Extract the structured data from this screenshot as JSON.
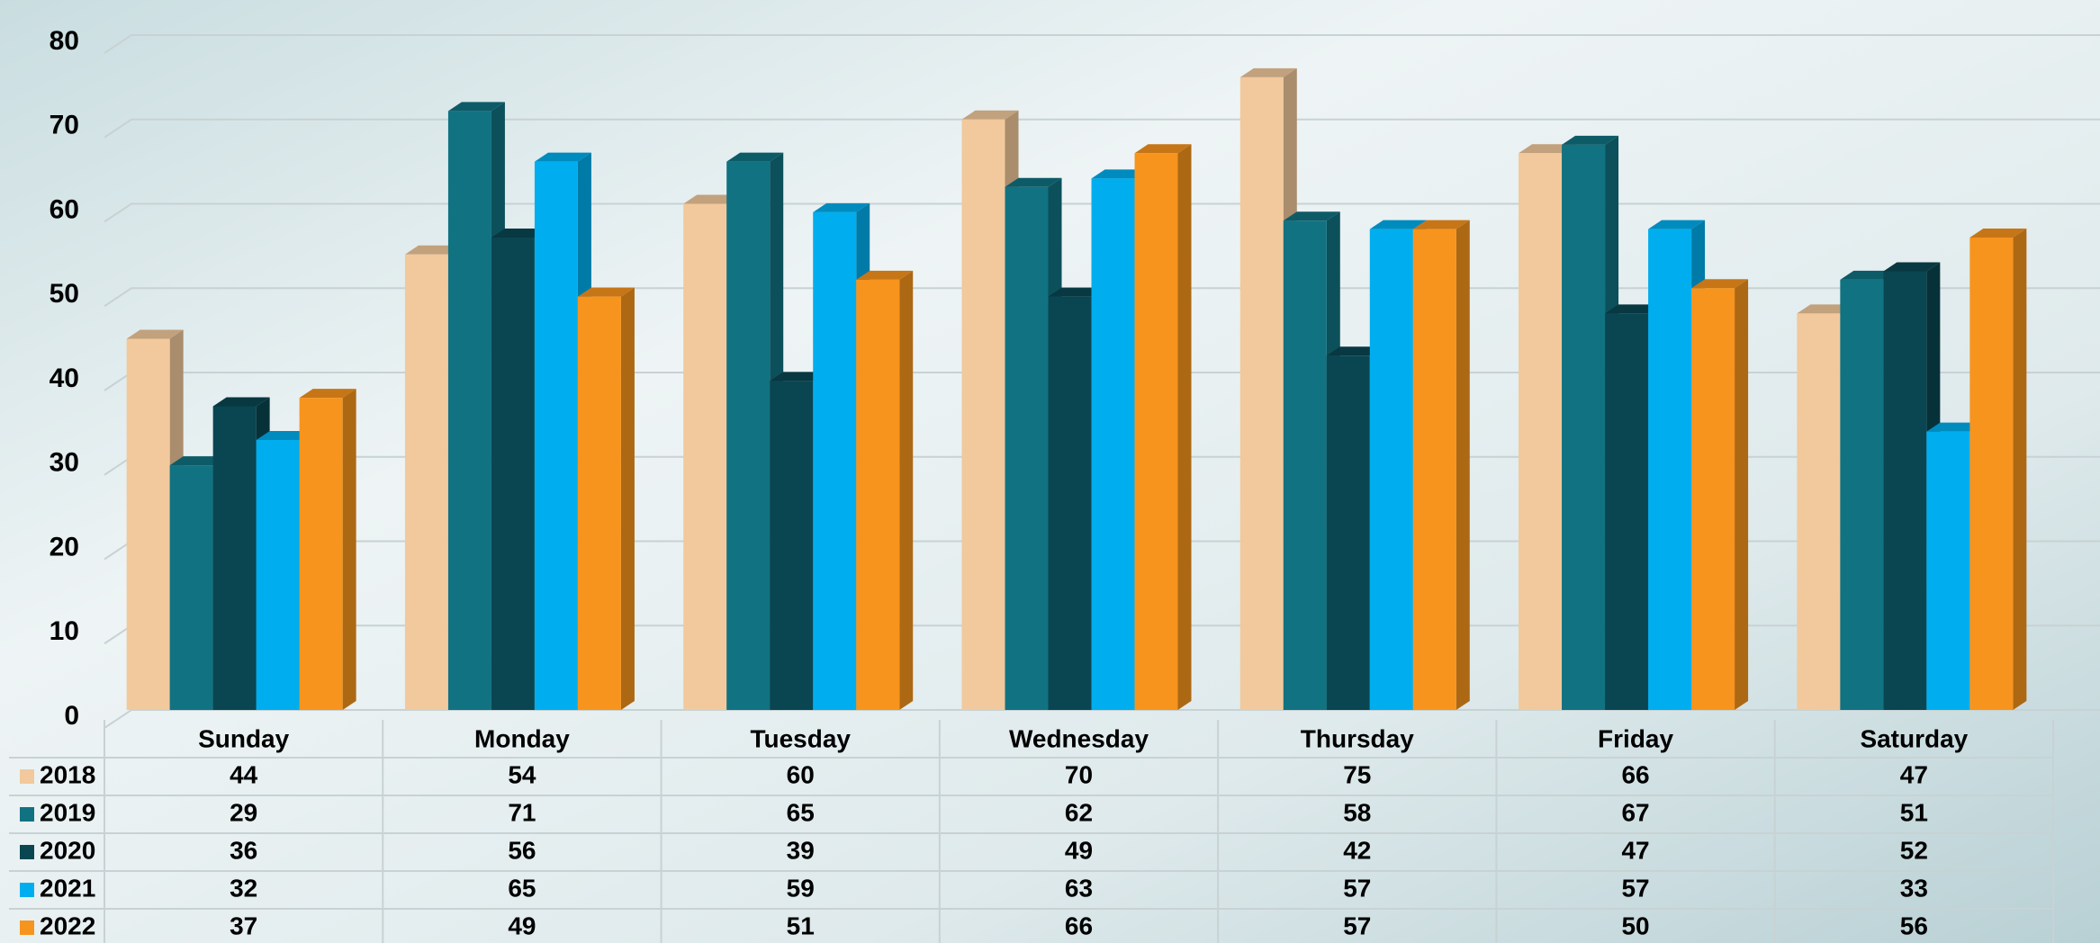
{
  "chart_data": {
    "type": "bar",
    "categories": [
      "Sunday",
      "Monday",
      "Tuesday",
      "Wednesday",
      "Thursday",
      "Friday",
      "Saturday"
    ],
    "series": [
      {
        "name": "2018",
        "color": "#f2c99c",
        "values": [
          44,
          54,
          60,
          70,
          75,
          66,
          47
        ]
      },
      {
        "name": "2019",
        "color": "#117282",
        "values": [
          29,
          71,
          65,
          62,
          58,
          67,
          51
        ]
      },
      {
        "name": "2020",
        "color": "#0a4651",
        "values": [
          36,
          56,
          39,
          49,
          42,
          47,
          52
        ]
      },
      {
        "name": "2021",
        "color": "#00aeef",
        "values": [
          32,
          65,
          59,
          63,
          57,
          57,
          33
        ]
      },
      {
        "name": "2022",
        "color": "#f7941d",
        "values": [
          37,
          49,
          51,
          66,
          57,
          50,
          56
        ]
      }
    ],
    "ylim": [
      0,
      80
    ],
    "yticks": [
      0,
      10,
      20,
      30,
      40,
      50,
      60,
      70,
      80
    ],
    "grid": true
  }
}
